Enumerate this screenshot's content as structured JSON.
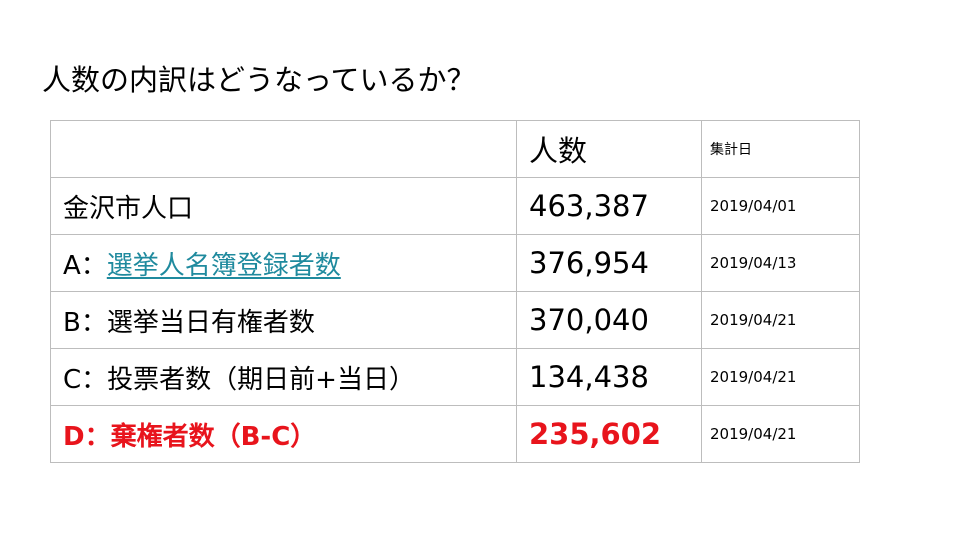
{
  "title": "人数の内訳はどうなっているか？",
  "table": {
    "header": {
      "label": "",
      "count": "人数",
      "date": "集計日"
    },
    "rows": [
      {
        "label": "金沢市人口",
        "count": "463,387",
        "date": "2019/04/01"
      },
      {
        "prefix": "A：",
        "label": "選挙人名簿登録者数",
        "count": "376,954",
        "date": "2019/04/13"
      },
      {
        "label": "B：選挙当日有権者数",
        "count": "370,040",
        "date": "2019/04/21"
      },
      {
        "label": "C：投票者数（期日前+当日）",
        "count": "134,438",
        "date": "2019/04/21"
      },
      {
        "label": "D：棄権者数（B-C）",
        "count": "235,602",
        "date": "2019/04/21"
      }
    ]
  },
  "colors": {
    "link": "#1f8a9e",
    "highlight": "#e8141c",
    "border": "#bdbdbd"
  }
}
